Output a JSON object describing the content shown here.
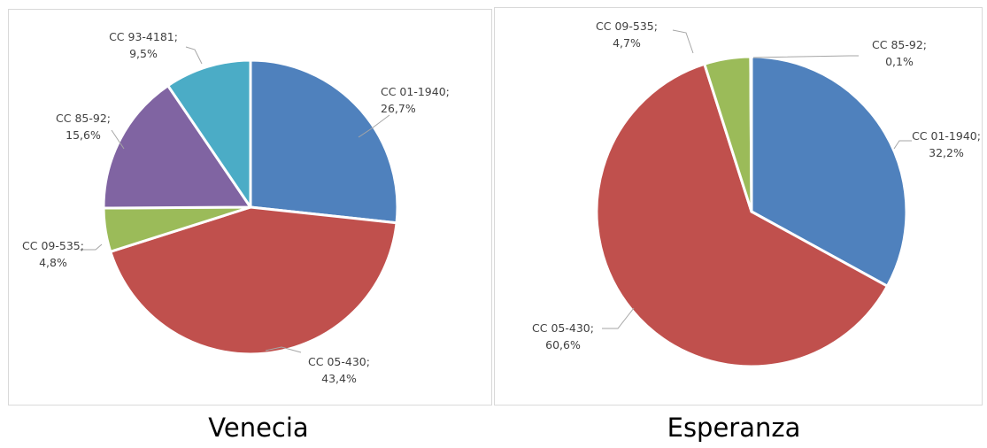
{
  "captions": {
    "left": "Venecia",
    "right": "Esperanza"
  },
  "chart_data": [
    {
      "type": "pie",
      "title": "",
      "name": "Venecia",
      "slices": [
        {
          "label": "CC 01-1940",
          "value": 26.7,
          "display": "26,7%",
          "color": "#4F81BD"
        },
        {
          "label": "CC 05-430",
          "value": 43.4,
          "display": "43,4%",
          "color": "#C0504D"
        },
        {
          "label": "CC 09-535",
          "value": 4.8,
          "display": "4,8%",
          "color": "#9BBB59"
        },
        {
          "label": "CC 85-92",
          "value": 15.6,
          "display": "15,6%",
          "color": "#8064A2"
        },
        {
          "label": "CC 93-4181",
          "value": 9.5,
          "display": "9,5%",
          "color": "#4BACC6"
        }
      ]
    },
    {
      "type": "pie",
      "title": "",
      "name": "Esperanza",
      "slices": [
        {
          "label": "CC 01-1940",
          "value": 32.2,
          "display": "32,2%",
          "color": "#4F81BD"
        },
        {
          "label": "CC 05-430",
          "value": 60.6,
          "display": "60,6%",
          "color": "#C0504D"
        },
        {
          "label": "CC 09-535",
          "value": 4.7,
          "display": "4,7%",
          "color": "#9BBB59"
        },
        {
          "label": "CC 85-92",
          "value": 0.1,
          "display": "0,1%",
          "color": "#8064A2"
        }
      ]
    }
  ]
}
